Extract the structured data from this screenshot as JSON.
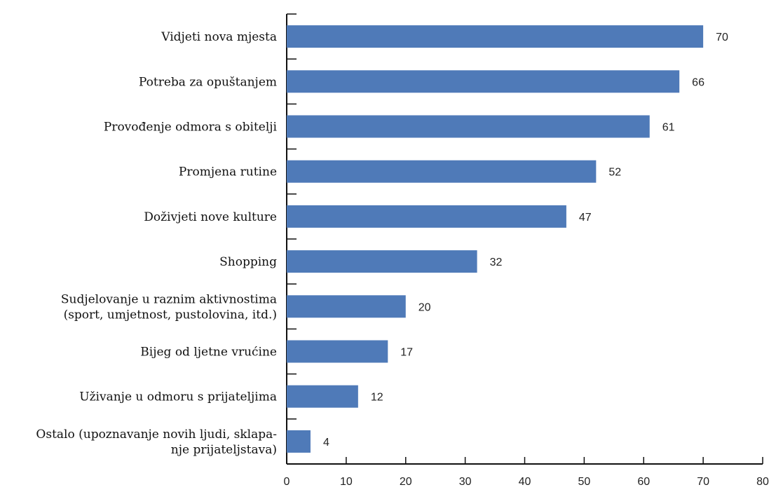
{
  "chart_data": {
    "type": "bar",
    "orientation": "horizontal",
    "title": "",
    "xlabel": "",
    "ylabel": "",
    "xlim": [
      0,
      80
    ],
    "x_ticks": [
      0,
      10,
      20,
      30,
      40,
      50,
      60,
      70,
      80
    ],
    "grid": false,
    "legend": "none",
    "bar_color": "#4f7ab8",
    "categories": [
      [
        "Vidjeti nova mjesta"
      ],
      [
        "Potreba za opuštanjem"
      ],
      [
        "Provođenje odmora s obitelji"
      ],
      [
        "Promjena rutine"
      ],
      [
        "Doživjeti nove kulture"
      ],
      [
        "Shopping"
      ],
      [
        "Sudjelovanje u raznim aktivnostima",
        "(sport, umjetnost, pustolovina, itd.)"
      ],
      [
        "Bijeg od ljetne vrućine"
      ],
      [
        "Uživanje u odmoru s prijateljima"
      ],
      [
        "Ostalo (upoznavanje novih ljudi, sklapa-",
        "nje prijateljstava)"
      ]
    ],
    "values": [
      70,
      66,
      61,
      52,
      47,
      32,
      20,
      17,
      12,
      4
    ]
  }
}
